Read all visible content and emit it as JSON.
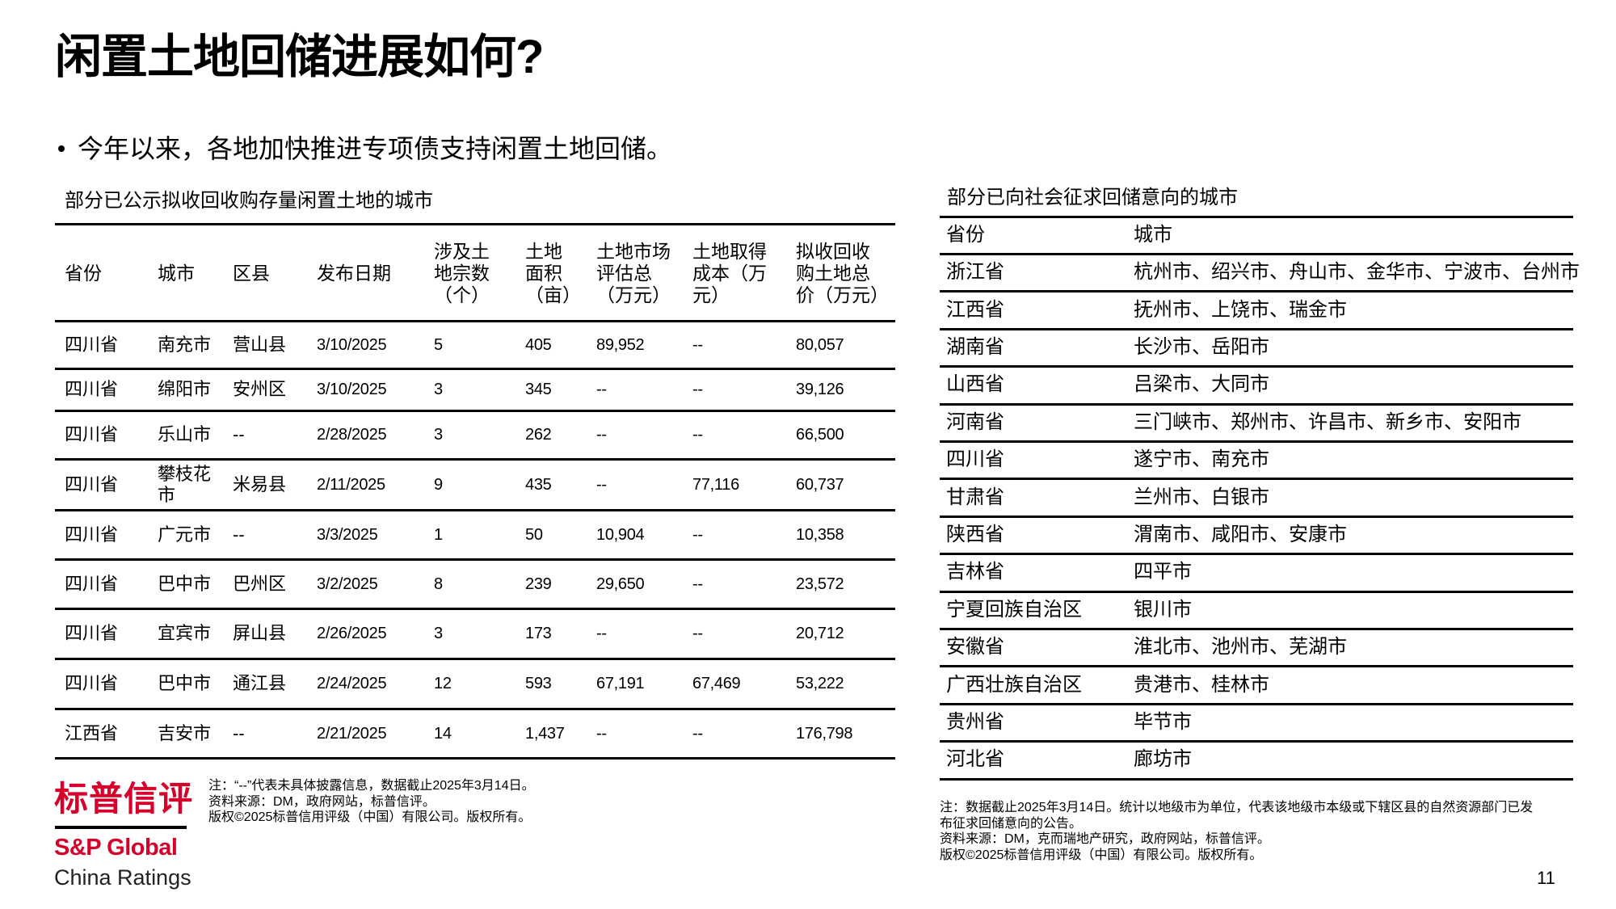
{
  "title": "闲置土地回储进展如何?",
  "bullet": "今年以来，各地加快推进专项债支持闲置土地回储。",
  "left_table": {
    "title": "部分已公示拟收回收购存量闲置土地的城市",
    "headers": [
      [
        "省份"
      ],
      [
        "城市"
      ],
      [
        "区县"
      ],
      [
        "发布日期"
      ],
      [
        "涉及土",
        "地宗数",
        "（个）"
      ],
      [
        "土地",
        "面积",
        "（亩）"
      ],
      [
        "土地市场",
        "评估总",
        "（万元）"
      ],
      [
        "土地取得",
        "成本（万",
        "元）"
      ],
      [
        "拟收回收",
        "购土地总",
        "价（万元）"
      ]
    ],
    "rows": [
      [
        "四川省",
        "南充市",
        "营山县",
        "3/10/2025",
        "5",
        "405",
        "89,952",
        "--",
        "80,057"
      ],
      [
        "四川省",
        "绵阳市",
        "安州区",
        "3/10/2025",
        "3",
        "345",
        "--",
        "--",
        "39,126"
      ],
      [
        "四川省",
        "乐山市",
        "--",
        "2/28/2025",
        "3",
        "262",
        "--",
        "--",
        "66,500"
      ],
      [
        "四川省",
        "攀枝花市",
        "米易县",
        "2/11/2025",
        "9",
        "435",
        "--",
        "77,116",
        "60,737"
      ],
      [
        "四川省",
        "广元市",
        "--",
        "3/3/2025",
        "1",
        "50",
        "10,904",
        "--",
        "10,358"
      ],
      [
        "四川省",
        "巴中市",
        "巴州区",
        "3/2/2025",
        "8",
        "239",
        "29,650",
        "--",
        "23,572"
      ],
      [
        "四川省",
        "宜宾市",
        "屏山县",
        "2/26/2025",
        "3",
        "173",
        "--",
        "--",
        "20,712"
      ],
      [
        "四川省",
        "巴中市",
        "通江县",
        "2/24/2025",
        "12",
        "593",
        "67,191",
        "67,469",
        "53,222"
      ],
      [
        "江西省",
        "吉安市",
        "--",
        "2/21/2025",
        "14",
        "1,437",
        "--",
        "--",
        "176,798"
      ]
    ],
    "notes": [
      "注：“--”代表未具体披露信息，数据截止2025年3月14日。",
      "资料来源：DM，政府网站，标普信评。",
      "版权©2025标普信用评级（中国）有限公司。版权所有。"
    ]
  },
  "right_table": {
    "title": "部分已向社会征求回储意向的城市",
    "headers": [
      "省份",
      "城市"
    ],
    "rows": [
      [
        "浙江省",
        "杭州市、绍兴市、舟山市、金华市、宁波市、台州市"
      ],
      [
        "江西省",
        "抚州市、上饶市、瑞金市"
      ],
      [
        "湖南省",
        "长沙市、岳阳市"
      ],
      [
        "山西省",
        "吕梁市、大同市"
      ],
      [
        "河南省",
        "三门峡市、郑州市、许昌市、新乡市、安阳市"
      ],
      [
        "四川省",
        "遂宁市、南充市"
      ],
      [
        "甘肃省",
        "兰州市、白银市"
      ],
      [
        "陕西省",
        "渭南市、咸阳市、安康市"
      ],
      [
        "吉林省",
        "四平市"
      ],
      [
        "宁夏回族自治区",
        "银川市"
      ],
      [
        "安徽省",
        "淮北市、池州市、芜湖市"
      ],
      [
        "广西壮族自治区",
        "贵港市、桂林市"
      ],
      [
        "贵州省",
        "毕节市"
      ],
      [
        "河北省",
        "廊坊市"
      ]
    ],
    "notes": [
      "注：数据截止2025年3月14日。统计以地级市为单位，代表该地级市本级或下辖区县的自然资源部门已发",
      "布征求回储意向的公告。",
      "资料来源：DM，克而瑞地产研究，政府网站，标普信评。",
      "版权©2025标普信用评级（中国）有限公司。版权所有。"
    ]
  },
  "logo": {
    "cn": "标普信评",
    "en": "S&P Global",
    "sub": "China Ratings",
    "brand_color": "#D6002A"
  },
  "page_number": "11"
}
